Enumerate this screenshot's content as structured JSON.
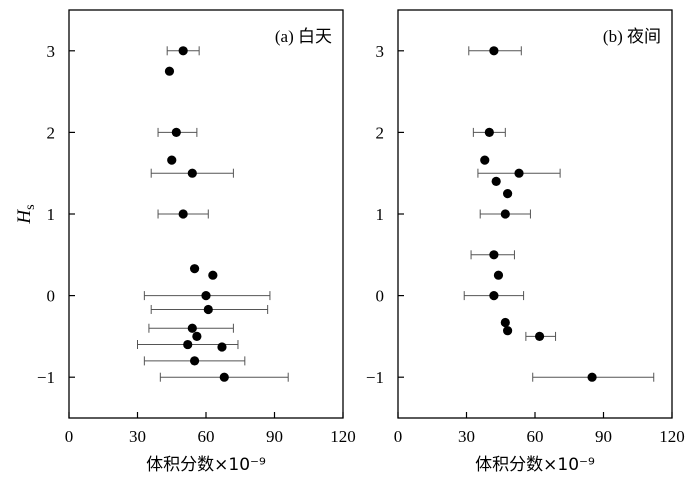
{
  "chart_data": [
    {
      "type": "scatter",
      "title": "(a) 白天",
      "xlabel": "体积分数×10⁻⁹",
      "ylabel": "H",
      "ylabel_sub": "s",
      "xlim": [
        0,
        120
      ],
      "ylim": [
        -1.5,
        3.5
      ],
      "xticks": [
        0,
        30,
        60,
        90,
        120
      ],
      "yticks": [
        -1,
        0,
        1,
        2,
        3
      ],
      "grid": false,
      "points": [
        {
          "x": 50,
          "y": 3.0,
          "xerr": [
            43,
            57
          ]
        },
        {
          "x": 44,
          "y": 2.75
        },
        {
          "x": 47,
          "y": 2.0,
          "xerr": [
            39,
            56
          ]
        },
        {
          "x": 45,
          "y": 1.66
        },
        {
          "x": 54,
          "y": 1.5,
          "xerr": [
            36,
            72
          ]
        },
        {
          "x": 50,
          "y": 1.0,
          "xerr": [
            39,
            61
          ]
        },
        {
          "x": 55,
          "y": 0.33
        },
        {
          "x": 63,
          "y": 0.25
        },
        {
          "x": 60,
          "y": 0.0,
          "xerr": [
            33,
            88
          ]
        },
        {
          "x": 61,
          "y": -0.17,
          "xerr": [
            36,
            87
          ]
        },
        {
          "x": 54,
          "y": -0.4,
          "xerr": [
            35,
            72
          ]
        },
        {
          "x": 56,
          "y": -0.5
        },
        {
          "x": 52,
          "y": -0.6,
          "xerr": [
            30,
            74
          ]
        },
        {
          "x": 67,
          "y": -0.63
        },
        {
          "x": 55,
          "y": -0.8,
          "xerr": [
            33,
            77
          ]
        },
        {
          "x": 68,
          "y": -1.0,
          "xerr": [
            40,
            96
          ]
        }
      ]
    },
    {
      "type": "scatter",
      "title": "(b) 夜间",
      "xlabel": "体积分数×10⁻⁹",
      "xlim": [
        0,
        120
      ],
      "ylim": [
        -1.5,
        3.5
      ],
      "xticks": [
        0,
        30,
        60,
        90,
        120
      ],
      "yticks": [
        -1,
        0,
        1,
        2,
        3
      ],
      "grid": false,
      "points": [
        {
          "x": 42,
          "y": 3.0,
          "xerr": [
            31,
            54
          ]
        },
        {
          "x": 40,
          "y": 2.0,
          "xerr": [
            33,
            47
          ]
        },
        {
          "x": 38,
          "y": 1.66
        },
        {
          "x": 53,
          "y": 1.5,
          "xerr": [
            35,
            71
          ]
        },
        {
          "x": 43,
          "y": 1.4
        },
        {
          "x": 48,
          "y": 1.25
        },
        {
          "x": 47,
          "y": 1.0,
          "xerr": [
            36,
            58
          ]
        },
        {
          "x": 42,
          "y": 0.5,
          "xerr": [
            32,
            51
          ]
        },
        {
          "x": 44,
          "y": 0.25
        },
        {
          "x": 42,
          "y": 0.0,
          "xerr": [
            29,
            55
          ]
        },
        {
          "x": 47,
          "y": -0.33
        },
        {
          "x": 48,
          "y": -0.43
        },
        {
          "x": 62,
          "y": -0.5,
          "xerr": [
            56,
            69
          ]
        },
        {
          "x": 85,
          "y": -1.0,
          "xerr": [
            59,
            112
          ]
        }
      ]
    }
  ]
}
